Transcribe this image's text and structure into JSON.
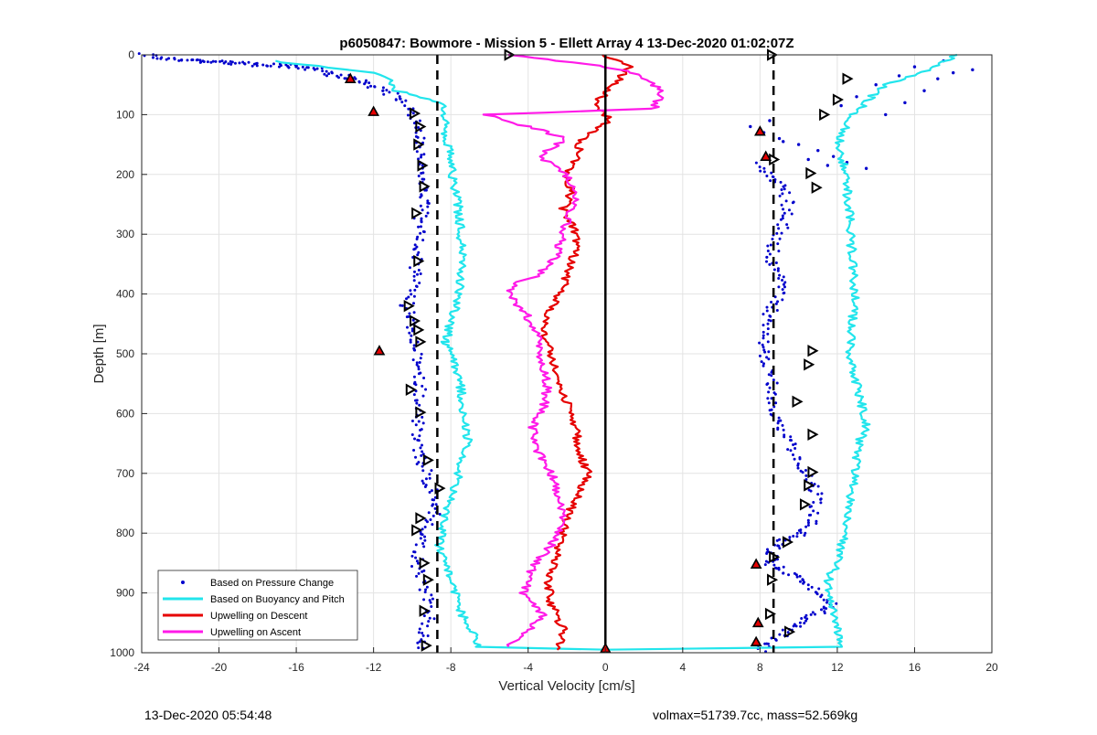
{
  "chart_data": {
    "type": "scatter",
    "title": "p6050847: Bowmore - Mission 5 - Ellett Array 4 13-Dec-2020 01:02:07Z",
    "xlabel": "Vertical Velocity [cm/s]",
    "ylabel": "Depth [m]",
    "xlim": [
      -24,
      20
    ],
    "ylim": [
      1000,
      0
    ],
    "y_reversed": true,
    "grid": true,
    "x_ticks": [
      "-24",
      "-20",
      "-16",
      "-12",
      "-8",
      "-4",
      "0",
      "4",
      "8",
      "12",
      "16",
      "20"
    ],
    "y_ticks": [
      "0",
      "100",
      "200",
      "300",
      "400",
      "500",
      "600",
      "700",
      "800",
      "900",
      "1000"
    ],
    "legend_position": "bottom-left",
    "legend": [
      {
        "name": "Based on Pressure Change",
        "color": "#0000cc",
        "style": "dots"
      },
      {
        "name": "Based on Buoyancy and Pitch",
        "color": "#22e5ec",
        "style": "line"
      },
      {
        "name": "Upwelling on Descent",
        "color": "#e60000",
        "style": "line"
      },
      {
        "name": "Upwelling on Ascent",
        "color": "#ff1ae8",
        "style": "line"
      }
    ],
    "series": [
      {
        "name": "Based on Pressure Change",
        "role": "descent-dots",
        "color": "#0000cc",
        "x": [
          -23.8,
          -21.8,
          -15.5,
          -13.2,
          -12.2,
          -11.5,
          -10.3,
          -9.8,
          -9.5,
          -9.7,
          -9.3,
          -9.5,
          -9.7,
          -9.8,
          -9.9,
          -10.0,
          -10.3,
          -10.1,
          -9.9,
          -9.8,
          -9.6,
          -9.6,
          -9.9,
          -9.5,
          -9.1,
          -8.7,
          -9.4,
          -9.8,
          -9.6,
          -9.3,
          -9.1,
          -9.3,
          -9.6,
          -9.3
        ],
        "y": [
          0,
          10,
          20,
          40,
          50,
          60,
          80,
          120,
          160,
          180,
          220,
          260,
          300,
          350,
          380,
          400,
          420,
          440,
          470,
          520,
          560,
          600,
          640,
          680,
          720,
          760,
          800,
          840,
          870,
          900,
          930,
          960,
          980,
          995
        ]
      },
      {
        "name": "Based on Pressure Change",
        "role": "ascent-dots",
        "color": "#0000cc",
        "x": [
          8.0,
          8.5,
          9.5,
          10.5,
          11.8,
          11.0,
          10.3,
          9.0,
          8.5,
          8.7,
          8.4,
          9.2,
          10.1,
          10.8,
          11.0,
          10.3,
          9.6,
          8.8,
          8.6,
          8.3,
          8.2,
          9.0,
          9.3,
          8.5,
          9.0,
          9.5,
          9.2,
          8.3,
          8.0
        ],
        "y": [
          995,
          985,
          960,
          940,
          920,
          900,
          880,
          860,
          850,
          845,
          830,
          815,
          800,
          780,
          740,
          700,
          650,
          600,
          550,
          500,
          450,
          400,
          380,
          340,
          300,
          260,
          220,
          200,
          180
        ]
      },
      {
        "name": "Based on Pressure Change",
        "role": "scatter-upper",
        "color": "#0000cc",
        "x": [
          7.5,
          8.2,
          9.0,
          10.0,
          11.0,
          11.8,
          12.5,
          13.5,
          14.5,
          15.5,
          16.5,
          17.2,
          18.0,
          19.0,
          8.5,
          9.2,
          10.5,
          11.5,
          12.2,
          13.0,
          14.0,
          15.2,
          16.0,
          17.5
        ],
        "y": [
          120,
          130,
          140,
          150,
          160,
          170,
          180,
          190,
          100,
          80,
          60,
          40,
          30,
          25,
          110,
          145,
          175,
          185,
          85,
          70,
          50,
          35,
          20,
          10
        ]
      },
      {
        "name": "Based on Buoyancy and Pitch",
        "color": "#22e5ec",
        "x": [
          -17.3,
          -12.0,
          -11.2,
          -10.8,
          -8.5,
          -8.3,
          -8.0,
          -7.8,
          -7.6,
          -7.5,
          -7.4,
          -7.6,
          -7.8,
          -8.1,
          -8.3,
          -8.5,
          -7.9,
          -7.5,
          -7.3,
          -7.1,
          -7.6,
          -7.9,
          -8.4,
          -8.6,
          -8.3,
          -8.0,
          -7.6,
          -7.2,
          -6.8,
          -6.5,
          0,
          12.2,
          12.0,
          11.8,
          11.5,
          12.0,
          12.4,
          12.6,
          12.8,
          13.0,
          13.2,
          13.6,
          13.4,
          13.0,
          12.6,
          12.8,
          12.9,
          12.8,
          12.7,
          12.6,
          12.4,
          12.3,
          12.0,
          12.8,
          13.5,
          14.0,
          14.5,
          15.5,
          17.0,
          18.2
        ],
        "y": [
          10,
          30,
          40,
          60,
          80,
          120,
          180,
          220,
          260,
          300,
          350,
          400,
          430,
          460,
          480,
          480,
          500,
          550,
          600,
          650,
          700,
          740,
          780,
          820,
          850,
          880,
          920,
          950,
          970,
          990,
          995,
          990,
          960,
          920,
          880,
          850,
          800,
          760,
          720,
          680,
          640,
          630,
          600,
          550,
          500,
          450,
          400,
          350,
          300,
          250,
          200,
          180,
          150,
          100,
          80,
          60,
          50,
          40,
          20,
          0
        ]
      },
      {
        "name": "Upwelling on Descent",
        "color": "#e60000",
        "x": [
          0,
          1.2,
          0.5,
          -0.5,
          0.2,
          -1.2,
          -1.5,
          -2.0,
          -1.8,
          -2.2,
          -1.6,
          -1.4,
          -1.8,
          -2.1,
          -2.6,
          -3.0,
          -3.2,
          -2.8,
          -2.4,
          -2.0,
          -1.6,
          -1.4,
          -1.2,
          -0.9,
          -1.3,
          -1.8,
          -2.2,
          -2.6,
          -3.0,
          -2.8,
          -2.2,
          -2.5
        ],
        "y": [
          0,
          20,
          50,
          80,
          110,
          140,
          170,
          200,
          230,
          260,
          290,
          320,
          350,
          380,
          410,
          440,
          470,
          500,
          540,
          580,
          620,
          650,
          680,
          700,
          730,
          760,
          800,
          840,
          880,
          920,
          960,
          995
        ]
      },
      {
        "name": "Upwelling on Ascent",
        "color": "#ff1ae8",
        "x": [
          -5.0,
          -3.8,
          -2.5,
          -1.0,
          1.5,
          3.0,
          2.5,
          -6.2,
          -4.0,
          -2.0,
          -3.5,
          -2.0,
          -1.5,
          -1.8,
          -2.2,
          -2.6,
          -3.5,
          -4.5,
          -5.0,
          -4.2,
          -3.6,
          -3.4,
          -3.2,
          -3.0,
          -3.3,
          -3.8,
          -3.6,
          -2.8,
          -2.4,
          -2.2,
          -2.8,
          -3.6,
          -4.0,
          -4.2,
          -3.2,
          -5.0
        ],
        "y": [
          0,
          5,
          10,
          15,
          30,
          60,
          90,
          100,
          120,
          140,
          170,
          200,
          230,
          260,
          300,
          340,
          370,
          380,
          400,
          430,
          460,
          490,
          520,
          560,
          600,
          620,
          660,
          700,
          740,
          780,
          820,
          850,
          870,
          900,
          940,
          990
        ]
      },
      {
        "name": "Reference",
        "role": "ref-dashed-left",
        "color": "#000000",
        "x": [
          -8.7,
          -8.7
        ],
        "y": [
          0,
          1000
        ]
      },
      {
        "name": "Reference",
        "role": "ref-dashed-right",
        "color": "#000000",
        "x": [
          8.7,
          8.7
        ],
        "y": [
          0,
          1000
        ]
      },
      {
        "name": "Reference",
        "role": "ref-zero",
        "color": "#000000",
        "x": [
          0,
          0
        ],
        "y": [
          0,
          1000
        ]
      }
    ],
    "markers": {
      "triangles_up": [
        [
          -13.2,
          40
        ],
        [
          -12.0,
          95
        ],
        [
          -11.7,
          495
        ],
        [
          0,
          993
        ],
        [
          7.9,
          950
        ],
        [
          7.8,
          852
        ],
        [
          7.8,
          982
        ],
        [
          8.0,
          128
        ],
        [
          8.3,
          170
        ]
      ],
      "triangles_right": [
        [
          -5.0,
          0
        ],
        [
          -9.9,
          98
        ],
        [
          -9.6,
          120
        ],
        [
          -9.7,
          150
        ],
        [
          -9.5,
          185
        ],
        [
          -9.4,
          220
        ],
        [
          -9.8,
          265
        ],
        [
          -9.7,
          345
        ],
        [
          -10.2,
          420
        ],
        [
          -9.9,
          445
        ],
        [
          -9.7,
          460
        ],
        [
          -9.6,
          480
        ],
        [
          -10.1,
          560
        ],
        [
          -9.6,
          598
        ],
        [
          -9.2,
          678
        ],
        [
          -8.6,
          725
        ],
        [
          -9.6,
          775
        ],
        [
          -9.8,
          795
        ],
        [
          -9.4,
          850
        ],
        [
          -9.2,
          878
        ],
        [
          -9.4,
          930
        ],
        [
          -9.3,
          988
        ],
        [
          8.6,
          0
        ],
        [
          12.5,
          40
        ],
        [
          12.0,
          75
        ],
        [
          11.3,
          100
        ],
        [
          8.7,
          175
        ],
        [
          10.6,
          198
        ],
        [
          10.9,
          222
        ],
        [
          10.7,
          495
        ],
        [
          10.5,
          518
        ],
        [
          9.9,
          580
        ],
        [
          10.7,
          635
        ],
        [
          10.7,
          698
        ],
        [
          10.5,
          720
        ],
        [
          10.3,
          752
        ],
        [
          9.4,
          815
        ],
        [
          8.7,
          840
        ],
        [
          8.6,
          878
        ],
        [
          8.5,
          935
        ],
        [
          9.5,
          965
        ]
      ]
    },
    "footer_left": "13-Dec-2020 05:54:48",
    "footer_right": "volmax=51739.7cc, mass=52.569kg"
  }
}
